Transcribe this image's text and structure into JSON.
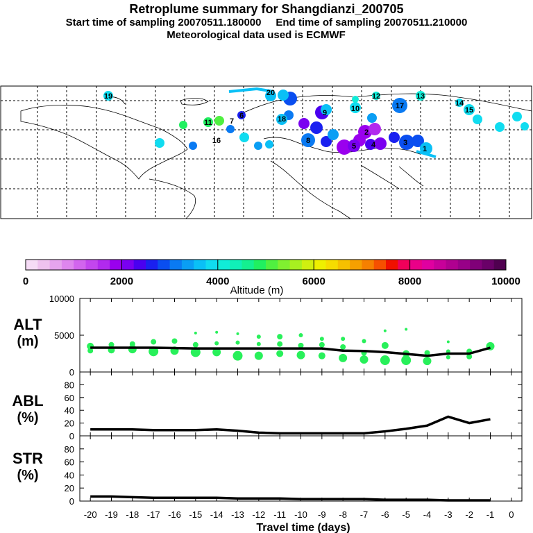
{
  "header": {
    "title": "Retroplume summary for Shangdianzi_200705",
    "start_label": "Start time of sampling 20070511.180000",
    "end_label": "End time of sampling 20070511.210000",
    "met_label": "Meteorological data used is ECMWF"
  },
  "colorbar": {
    "ticks": [
      "0",
      "2000",
      "4000",
      "6000",
      "8000",
      "10000"
    ],
    "label": "Altitude (m)",
    "min": 0,
    "max": 10000,
    "colors": [
      "#f6dcf6",
      "#efc2ef",
      "#e6a4ee",
      "#de86ee",
      "#d265ee",
      "#c346ee",
      "#b12aee",
      "#9a00ee",
      "#7a00f0",
      "#4a00f0",
      "#1a20f0",
      "#0a4ef0",
      "#0a7af2",
      "#0a9ef4",
      "#0ac0f6",
      "#10dcf0",
      "#10ecd8",
      "#10f0b8",
      "#14f090",
      "#20f060",
      "#50f040",
      "#80f030",
      "#a8f020",
      "#d0f010",
      "#eef000",
      "#f6dc00",
      "#f6c000",
      "#f6a000",
      "#f68000",
      "#f65000",
      "#f01000",
      "#f0005a",
      "#ea0088",
      "#e000a0",
      "#c8009a",
      "#b00090",
      "#980088",
      "#800078",
      "#6a0068",
      "#500050"
    ]
  },
  "chart_data": [
    {
      "type": "scatter",
      "name": "retroplume-map",
      "map_labels": [
        "19",
        "20",
        "18",
        "17",
        "16",
        "15",
        "14",
        "13",
        "12",
        "11",
        "10",
        "9",
        "8",
        "7",
        "6",
        "5",
        "4",
        "3",
        "2",
        "1"
      ],
      "xlabel": "",
      "ylabel": ""
    },
    {
      "type": "line",
      "name": "ALT",
      "panel_label": "ALT",
      "unit_label": "(m)",
      "x": [
        -20,
        -19,
        -18,
        -17,
        -16,
        -15,
        -14,
        -13,
        -12,
        -11,
        -10,
        -9,
        -8,
        -7,
        -6,
        -5,
        -4,
        -3,
        -2,
        -1
      ],
      "values": [
        3300,
        3300,
        3300,
        3300,
        3250,
        3200,
        3200,
        3200,
        3200,
        3200,
        3200,
        3200,
        2900,
        2850,
        2700,
        2450,
        2200,
        2500,
        2500,
        3300
      ],
      "ylim": [
        0,
        10000
      ],
      "yticks": [
        "10000",
        "5000",
        "0"
      ],
      "scatter_points": [
        {
          "x": -20,
          "y": 3500,
          "s": 5
        },
        {
          "x": -20,
          "y": 2900,
          "s": 4
        },
        {
          "x": -19,
          "y": 3700,
          "s": 4
        },
        {
          "x": -19,
          "y": 3000,
          "s": 5
        },
        {
          "x": -18,
          "y": 3800,
          "s": 4
        },
        {
          "x": -18,
          "y": 3100,
          "s": 6
        },
        {
          "x": -17,
          "y": 4100,
          "s": 4
        },
        {
          "x": -17,
          "y": 2800,
          "s": 7
        },
        {
          "x": -16,
          "y": 4200,
          "s": 4
        },
        {
          "x": -16,
          "y": 2900,
          "s": 6
        },
        {
          "x": -15,
          "y": 5300,
          "s": 2
        },
        {
          "x": -15,
          "y": 3700,
          "s": 4
        },
        {
          "x": -15,
          "y": 2700,
          "s": 7
        },
        {
          "x": -14,
          "y": 5400,
          "s": 2
        },
        {
          "x": -14,
          "y": 3900,
          "s": 3
        },
        {
          "x": -14,
          "y": 2700,
          "s": 6
        },
        {
          "x": -13,
          "y": 5200,
          "s": 2
        },
        {
          "x": -13,
          "y": 4000,
          "s": 3
        },
        {
          "x": -13,
          "y": 2200,
          "s": 7
        },
        {
          "x": -12,
          "y": 4800,
          "s": 3
        },
        {
          "x": -12,
          "y": 3800,
          "s": 3
        },
        {
          "x": -12,
          "y": 2200,
          "s": 6
        },
        {
          "x": -11,
          "y": 4800,
          "s": 4
        },
        {
          "x": -11,
          "y": 3800,
          "s": 4
        },
        {
          "x": -11,
          "y": 2500,
          "s": 5
        },
        {
          "x": -10,
          "y": 5000,
          "s": 3
        },
        {
          "x": -10,
          "y": 3600,
          "s": 4
        },
        {
          "x": -10,
          "y": 2300,
          "s": 6
        },
        {
          "x": -9,
          "y": 4500,
          "s": 3
        },
        {
          "x": -9,
          "y": 3700,
          "s": 4
        },
        {
          "x": -9,
          "y": 2200,
          "s": 5
        },
        {
          "x": -8,
          "y": 4500,
          "s": 3
        },
        {
          "x": -8,
          "y": 3400,
          "s": 4
        },
        {
          "x": -8,
          "y": 1900,
          "s": 6
        },
        {
          "x": -7,
          "y": 4200,
          "s": 3
        },
        {
          "x": -7,
          "y": 2600,
          "s": 4
        },
        {
          "x": -7,
          "y": 1700,
          "s": 6
        },
        {
          "x": -6,
          "y": 5600,
          "s": 2
        },
        {
          "x": -6,
          "y": 3600,
          "s": 5
        },
        {
          "x": -6,
          "y": 1600,
          "s": 7
        },
        {
          "x": -5,
          "y": 5800,
          "s": 2
        },
        {
          "x": -5,
          "y": 2500,
          "s": 5
        },
        {
          "x": -5,
          "y": 1600,
          "s": 7
        },
        {
          "x": -4,
          "y": 2600,
          "s": 4
        },
        {
          "x": -4,
          "y": 1500,
          "s": 6
        },
        {
          "x": -3,
          "y": 4100,
          "s": 2
        },
        {
          "x": -3,
          "y": 2800,
          "s": 3
        },
        {
          "x": -3,
          "y": 2000,
          "s": 3
        },
        {
          "x": -2,
          "y": 2800,
          "s": 4
        },
        {
          "x": -2,
          "y": 2100,
          "s": 4
        },
        {
          "x": -1,
          "y": 3500,
          "s": 6
        }
      ],
      "point_color": "#28f05a"
    },
    {
      "type": "line",
      "name": "ABL",
      "panel_label": "ABL",
      "unit_label": "(%)",
      "x": [
        -20,
        -19,
        -18,
        -17,
        -16,
        -15,
        -14,
        -13,
        -12,
        -11,
        -10,
        -9,
        -8,
        -7,
        -6,
        -5,
        -4,
        -3,
        -2,
        -1
      ],
      "values": [
        10,
        10,
        10,
        9,
        9,
        9,
        10,
        8,
        5,
        4,
        4,
        4,
        4,
        4,
        7,
        11,
        16,
        30,
        20,
        26
      ],
      "ylim": [
        0,
        100
      ],
      "yticks": [
        "80",
        "60",
        "40",
        "20",
        "0"
      ]
    },
    {
      "type": "line",
      "name": "STR",
      "panel_label": "STR",
      "unit_label": "(%)",
      "x": [
        -20,
        -19,
        -18,
        -17,
        -16,
        -15,
        -14,
        -13,
        -12,
        -11,
        -10,
        -9,
        -8,
        -7,
        -6,
        -5,
        -4,
        -3,
        -2,
        -1
      ],
      "values": [
        7,
        7,
        6,
        5,
        5,
        5,
        5,
        4,
        4,
        4,
        3,
        3,
        3,
        3,
        2,
        2,
        2,
        1,
        1,
        1
      ],
      "ylim": [
        0,
        100
      ],
      "yticks": [
        "80",
        "60",
        "40",
        "20",
        "0"
      ]
    }
  ],
  "x_axis": {
    "ticks": [
      "-20",
      "-19",
      "-18",
      "-17",
      "-16",
      "-15",
      "-14",
      "-13",
      "-12",
      "-11",
      "-10",
      "-9",
      "-8",
      "-7",
      "-6",
      "-5",
      "-4",
      "-3",
      "-2",
      "-1",
      "0"
    ],
    "label": "Travel time (days)"
  }
}
